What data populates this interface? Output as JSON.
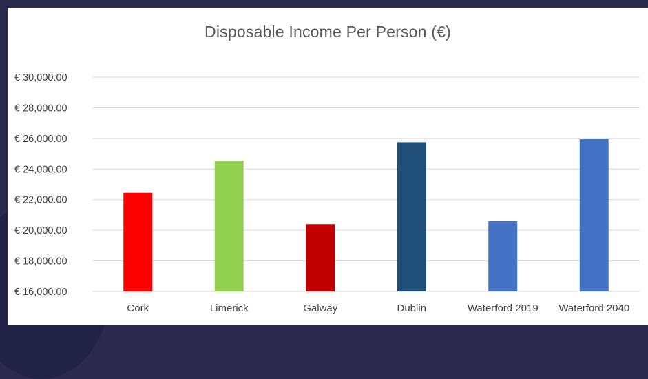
{
  "chart_data": {
    "type": "bar",
    "title": "Disposable Income Per Person (€)",
    "xlabel": "",
    "ylabel": "",
    "categories": [
      "Cork",
      "Limerick",
      "Galway",
      "Dublin",
      "Waterford 2019",
      "Waterford 2040"
    ],
    "values": [
      22450,
      24550,
      20400,
      25750,
      20600,
      25950
    ],
    "colors": [
      "#ff0000",
      "#92d050",
      "#c00000",
      "#1f4e79",
      "#4472c4",
      "#4472c4"
    ],
    "ylim": [
      16000,
      30000
    ],
    "yticks": [
      16000,
      18000,
      20000,
      22000,
      24000,
      26000,
      28000,
      30000
    ],
    "ytick_labels": [
      "€ 16,000.00",
      "€ 18,000.00",
      "€ 20,000.00",
      "€ 22,000.00",
      "€ 24,000.00",
      "€ 26,000.00",
      "€ 28,000.00",
      "€ 30,000.00"
    ],
    "grid": true,
    "legend": "none"
  },
  "colors": {
    "background": "#2b2a4c",
    "panel": "#ffffff",
    "gridline": "#d9d9d9",
    "text": "#404040"
  }
}
